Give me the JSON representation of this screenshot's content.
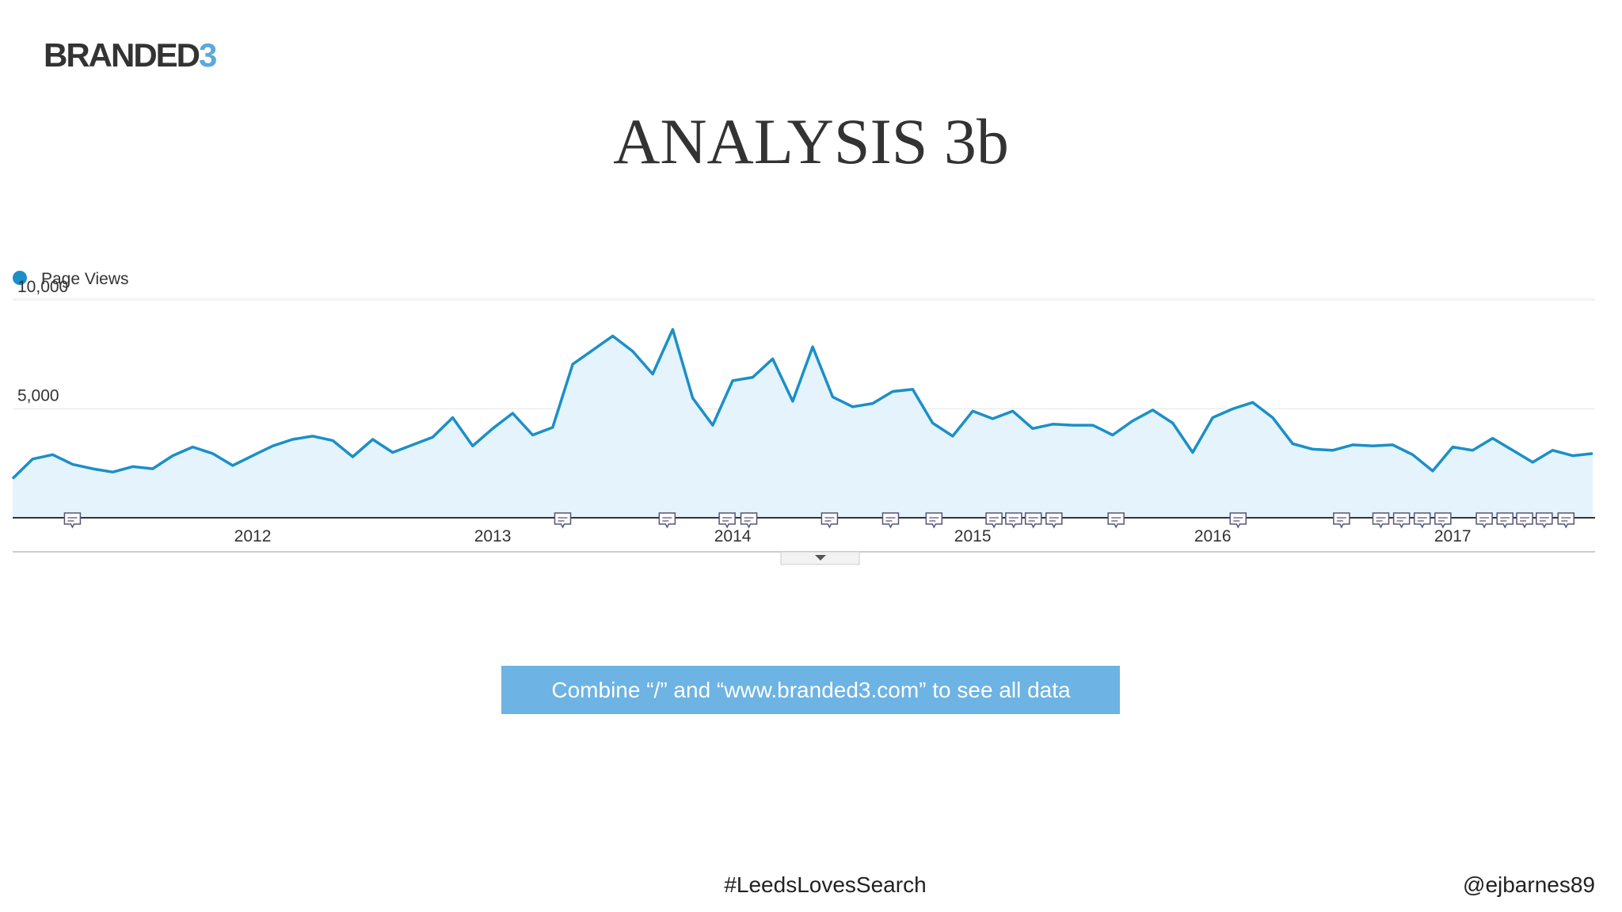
{
  "logo": {
    "text": "BRANDED",
    "accent": "3"
  },
  "title": "ANALYSIS 3b",
  "chart_data": {
    "type": "area",
    "series": [
      {
        "name": "Page Views",
        "color": "#1b8fc8",
        "values": [
          1800,
          2700,
          2900,
          2450,
          2250,
          2100,
          2350,
          2250,
          2850,
          3250,
          2950,
          2400,
          2850,
          3300,
          3600,
          3750,
          3550,
          2800,
          3600,
          3000,
          3350,
          3700,
          4600,
          3300,
          4100,
          4800,
          3800,
          4150,
          7050,
          7700,
          8350,
          7650,
          6600,
          8650,
          5500,
          4250,
          6300,
          6450,
          7300,
          5350,
          7850,
          5550,
          5100,
          5250,
          5800,
          5900,
          4350,
          3750,
          4900,
          4550,
          4900,
          4100,
          4300,
          4250,
          4250,
          3800,
          4450,
          4950,
          4350,
          3000,
          4600,
          5000,
          5300,
          4600,
          3400,
          3150,
          3100,
          3350,
          3300,
          3350,
          2900,
          2150,
          3250,
          3100,
          3650,
          3100,
          2550,
          3100,
          2850,
          2950
        ]
      }
    ],
    "categories": [
      null,
      null,
      null,
      null,
      null,
      null,
      null,
      null,
      null,
      null,
      null,
      null,
      "2012",
      null,
      null,
      null,
      null,
      null,
      null,
      null,
      null,
      null,
      null,
      null,
      "2013",
      null,
      null,
      null,
      null,
      null,
      null,
      null,
      null,
      null,
      null,
      null,
      "2014",
      null,
      null,
      null,
      null,
      null,
      null,
      null,
      null,
      null,
      null,
      null,
      "2015",
      null,
      null,
      null,
      null,
      null,
      null,
      null,
      null,
      null,
      null,
      null,
      "2016",
      null,
      null,
      null,
      null,
      null,
      null,
      null,
      null,
      null,
      null,
      null,
      "2017",
      null,
      null,
      null,
      null,
      null,
      null,
      null
    ],
    "ylim": [
      0,
      10000
    ],
    "yticks": [
      {
        "value": 5000,
        "label": "5,000"
      },
      {
        "value": 10000,
        "label": "10,000"
      }
    ],
    "grid": true,
    "legend": "top-left"
  },
  "note": "Combine “/” and “www.branded3.com” to see all data",
  "footer": {
    "hashtag": "#LeedsLovesSearch",
    "handle": "@ejbarnes89"
  }
}
